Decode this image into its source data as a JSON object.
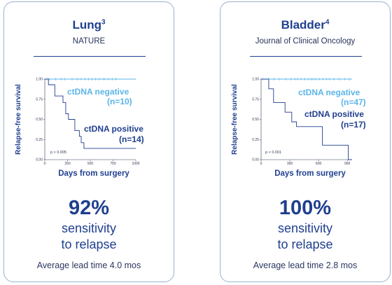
{
  "colors": {
    "brand": "#1f3f8f",
    "negative": "#5bb5e8",
    "positive": "#1f3f8f",
    "border": "#9ab1d4"
  },
  "panels": [
    {
      "title": "Lung",
      "superscript": "3",
      "subtitle": "NATURE",
      "y_label": "Relapse-free survival",
      "x_label": "Days from surgery",
      "p_value": "p < 0.005",
      "negative_label": "ctDNA negative",
      "negative_n": "(n=10)",
      "positive_label": "ctDNA positive",
      "positive_n": "(n=14)",
      "stat": "92%",
      "stat_line1": "sensitivity",
      "stat_line2": "to relapse",
      "lead_time": "Average lead time 4.0 mos",
      "chart_data": {
        "type": "line",
        "xlabel": "Days from surgery",
        "ylabel": "Relapse-free survival",
        "xlim": [
          0,
          1000
        ],
        "ylim": [
          0,
          1
        ],
        "x_ticks": [
          "0",
          "250",
          "500",
          "750",
          "1000"
        ],
        "y_ticks": [
          "0.00",
          "0.25",
          "0.50",
          "0.75",
          "1.00"
        ],
        "series": [
          {
            "name": "ctDNA negative",
            "x": [
              0,
              1000
            ],
            "y": [
              1.0,
              1.0
            ]
          },
          {
            "name": "ctDNA positive",
            "x": [
              0,
              40,
              40,
              110,
              110,
              200,
              200,
              230,
              230,
              260,
              260,
              330,
              330,
              380,
              380,
              400,
              400,
              430,
              430,
              1000
            ],
            "y": [
              1.0,
              1.0,
              0.93,
              0.93,
              0.79,
              0.79,
              0.71,
              0.71,
              0.57,
              0.57,
              0.5,
              0.5,
              0.36,
              0.36,
              0.29,
              0.29,
              0.21,
              0.21,
              0.14,
              0.14
            ]
          }
        ]
      }
    },
    {
      "title": "Bladder",
      "superscript": "4",
      "subtitle": "Journal of Clinical Oncology",
      "y_label": "Relapse-free survival",
      "x_label": "Days from surgery",
      "p_value": "p < 0.001",
      "negative_label": "ctDNA negative",
      "negative_n": "(n=47)",
      "positive_label": "ctDNA positive",
      "positive_n": "(n=17)",
      "stat": "100%",
      "stat_line1": "sensitivity",
      "stat_line2": "to relapse",
      "lead_time": "Average lead time 2.8 mos",
      "chart_data": {
        "type": "line",
        "xlabel": "Days from surgery",
        "ylabel": "Relapse-free survival",
        "xlim": [
          0,
          950
        ],
        "ylim": [
          0,
          1
        ],
        "x_ticks": [
          "0",
          "300",
          "600",
          "900"
        ],
        "y_ticks": [
          "0.00",
          "0.25",
          "0.50",
          "0.75",
          "1.00"
        ],
        "series": [
          {
            "name": "ctDNA negative",
            "x": [
              0,
              950
            ],
            "y": [
              1.0,
              1.0
            ]
          },
          {
            "name": "ctDNA positive",
            "x": [
              0,
              80,
              80,
              130,
              130,
              250,
              250,
              320,
              320,
              370,
              370,
              640,
              640,
              910,
              910,
              950
            ],
            "y": [
              1.0,
              1.0,
              0.88,
              0.88,
              0.71,
              0.71,
              0.59,
              0.59,
              0.47,
              0.47,
              0.41,
              0.41,
              0.18,
              0.18,
              0.0,
              0.0
            ]
          }
        ]
      }
    }
  ]
}
